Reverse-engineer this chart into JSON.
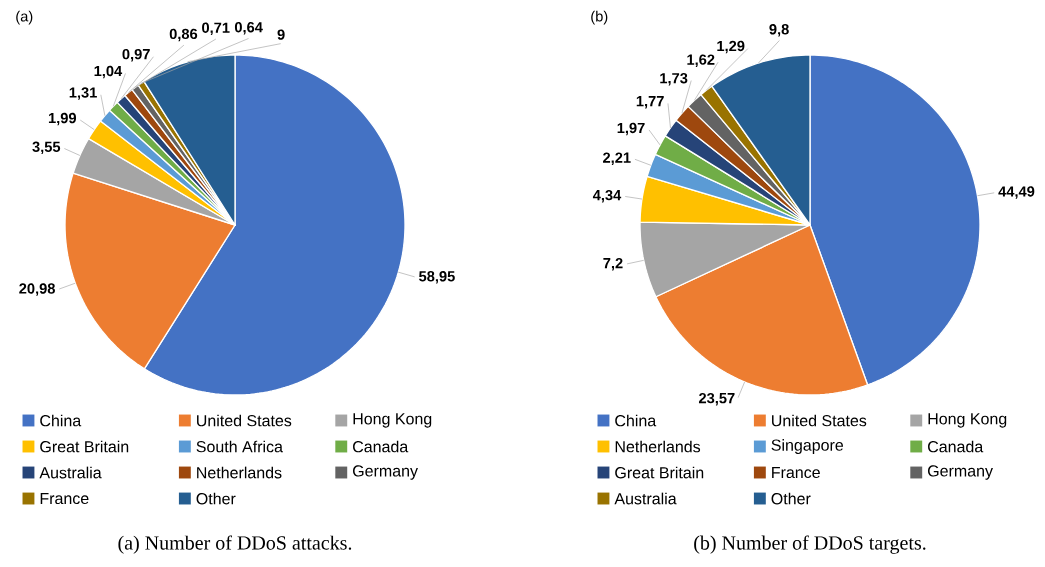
{
  "chart_data": [
    {
      "type": "pie",
      "title": "(a)",
      "categories": [
        "China",
        "United States",
        "Hong Kong",
        "Great Britain",
        "South Africa",
        "Canada",
        "Australia",
        "Netherlands",
        "Germany",
        "France",
        "Other"
      ],
      "values": [
        58.95,
        20.98,
        3.55,
        1.99,
        1.31,
        1.04,
        0.97,
        0.86,
        0.71,
        0.64,
        9
      ],
      "value_labels": [
        "58,95",
        "20,98",
        "3,55",
        "1,99",
        "1,31",
        "1,04",
        "0,97",
        "0,86",
        "0,71",
        "0,64",
        "9"
      ],
      "colors": [
        "#4472c4",
        "#ed7d31",
        "#a5a5a5",
        "#ffc000",
        "#5b9bd5",
        "#70ad47",
        "#264478",
        "#9e480e",
        "#636363",
        "#997300",
        "#255e91"
      ],
      "legend": "bottom",
      "annotations": [
        "(a) Number of DDoS attacks."
      ]
    },
    {
      "type": "pie",
      "title": "(b)",
      "categories": [
        "China",
        "United States",
        "Hong Kong",
        "Netherlands",
        "Singapore",
        "Canada",
        "Great Britain",
        "France",
        "Germany",
        "Australia",
        "Other"
      ],
      "values": [
        44.49,
        23.57,
        7.2,
        4.34,
        2.21,
        1.97,
        1.77,
        1.73,
        1.62,
        1.29,
        9.8
      ],
      "value_labels": [
        "44,49",
        "23,57",
        "7,2",
        "4,34",
        "2,21",
        "1,97",
        "1,77",
        "1,73",
        "1,62",
        "1,29",
        "9,8"
      ],
      "colors": [
        "#4472c4",
        "#ed7d31",
        "#a5a5a5",
        "#ffc000",
        "#5b9bd5",
        "#70ad47",
        "#264478",
        "#9e480e",
        "#636363",
        "#997300",
        "#255e91"
      ],
      "legend": "bottom",
      "annotations": [
        "(b) Number of DDoS targets."
      ]
    }
  ]
}
